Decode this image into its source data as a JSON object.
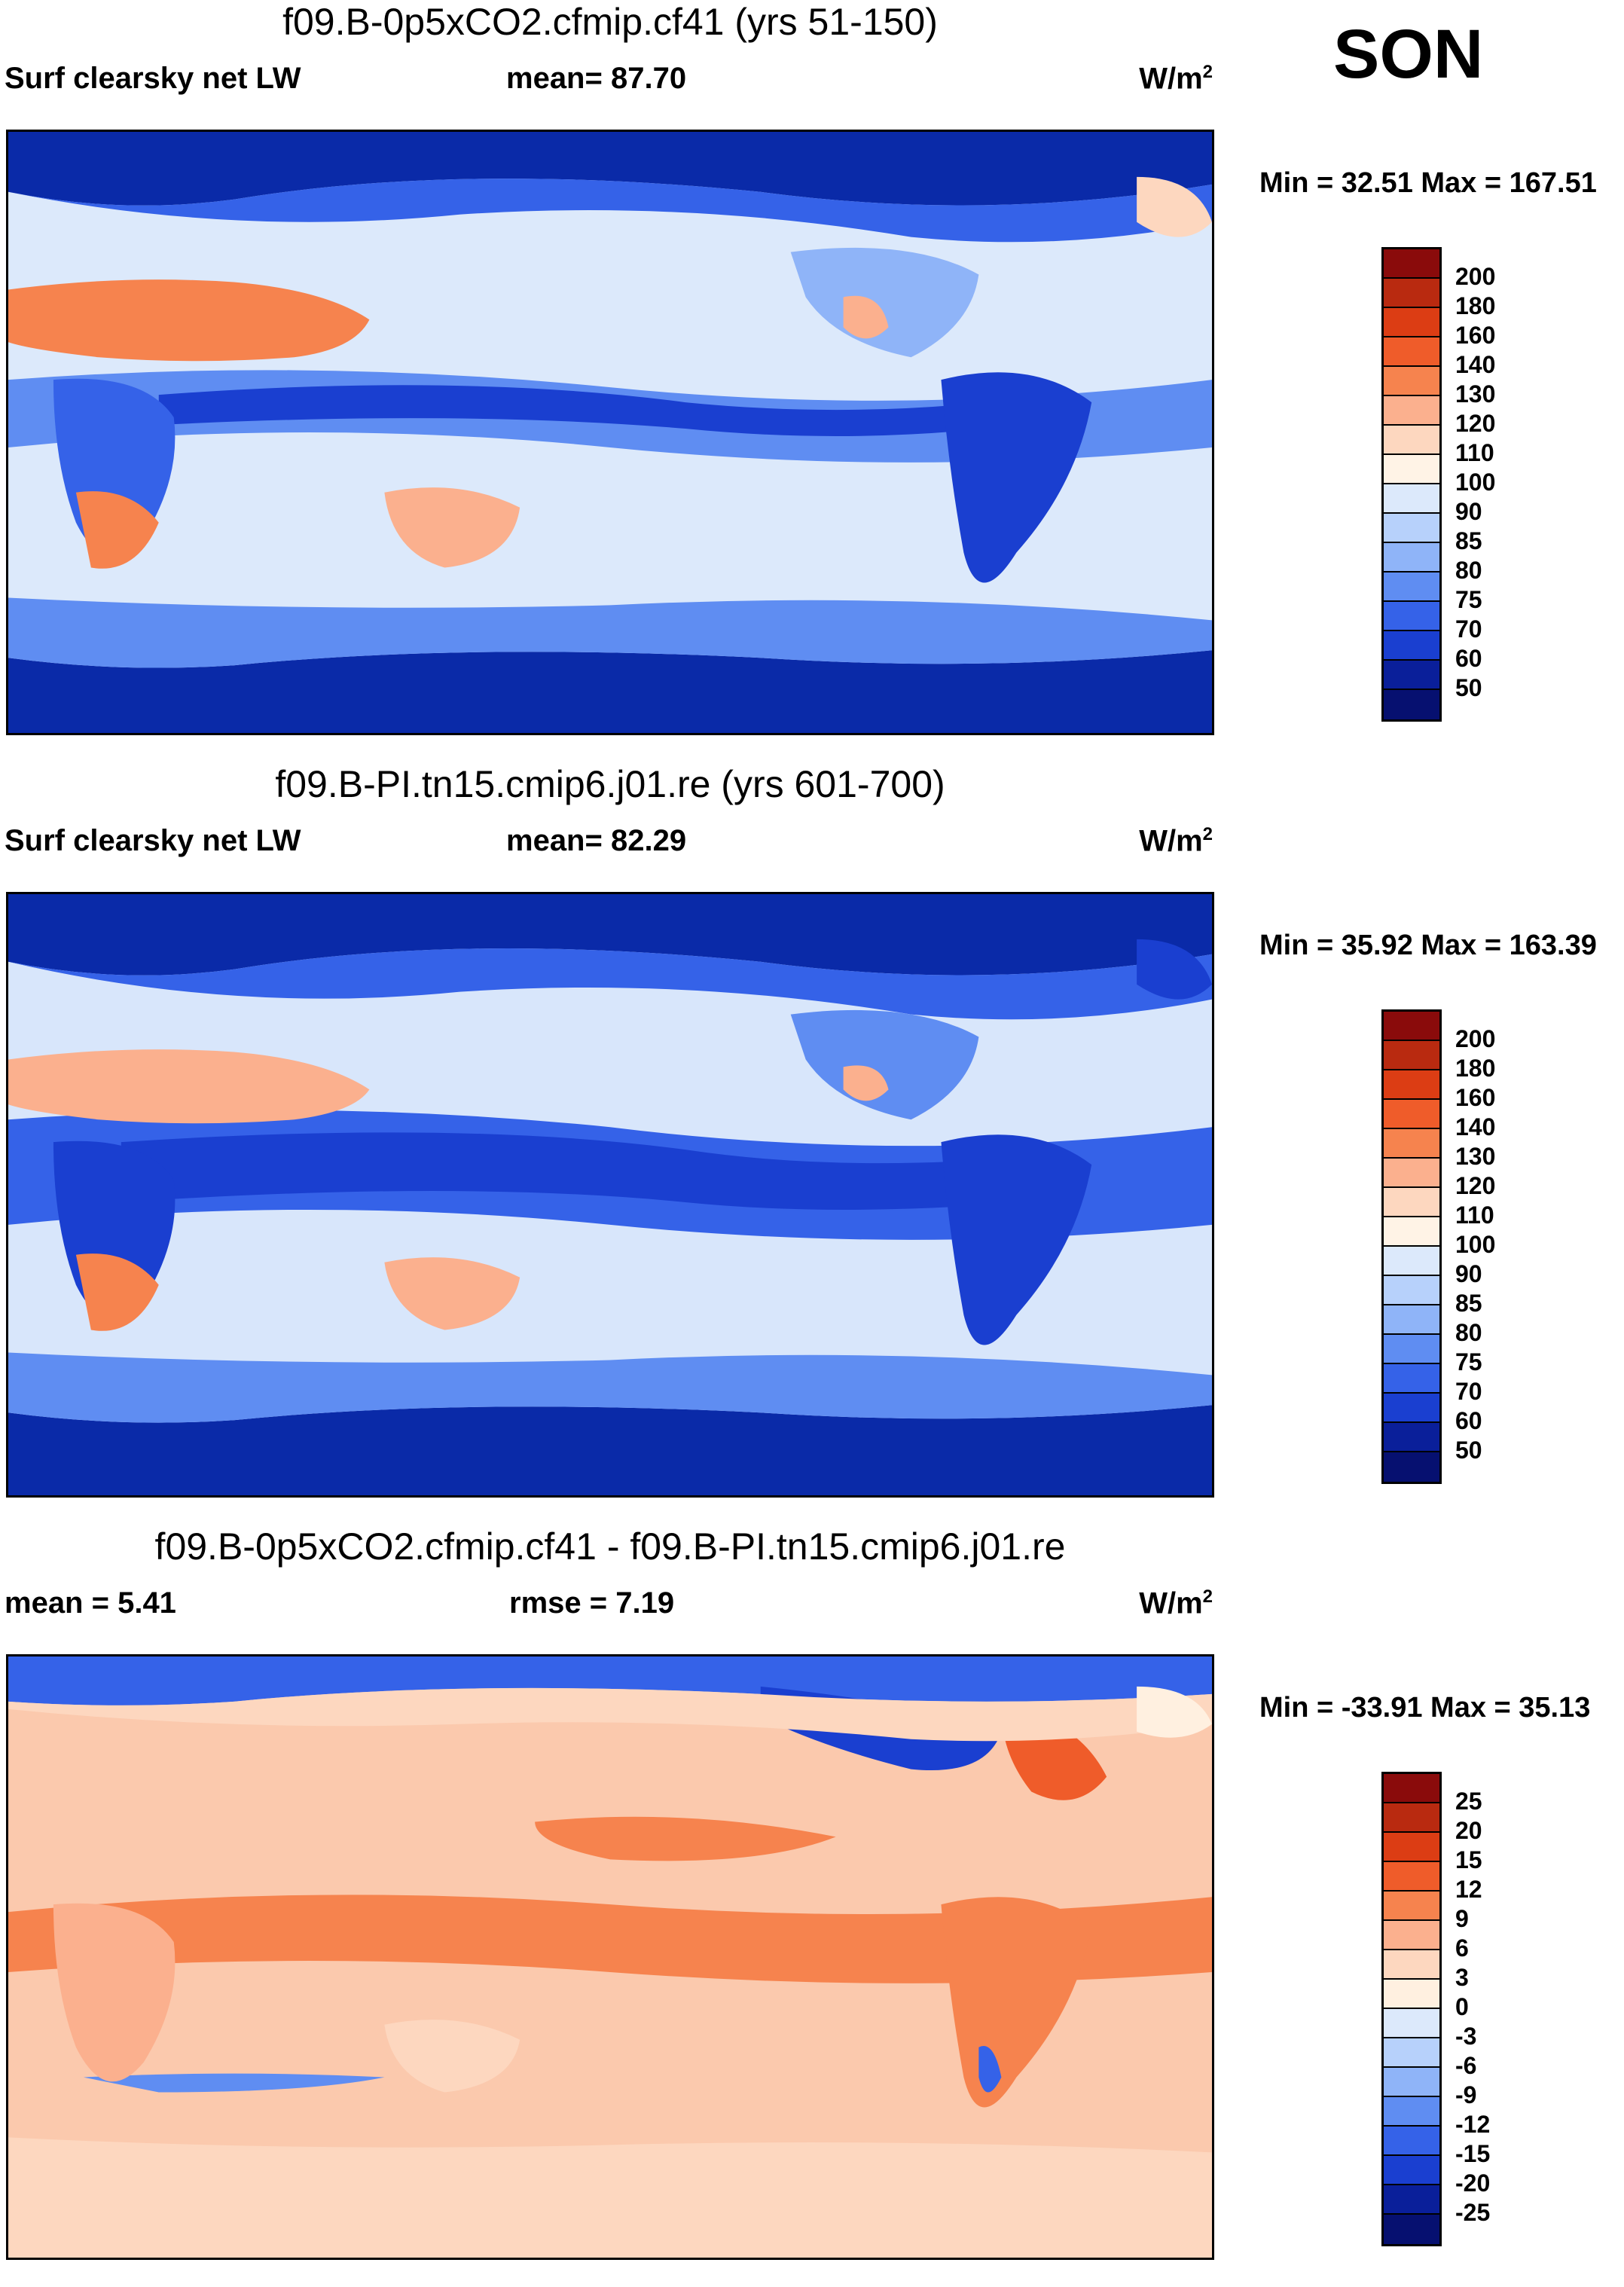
{
  "season": "SON",
  "panels": [
    {
      "title": "f09.B-0p5xCO2.cfmip.cf41 (yrs 51-150)",
      "left": "Surf clearsky net LW",
      "mid": "mean=  87.70",
      "units": "W/m",
      "units_sup": "2",
      "minmax": "Min =  32.51 Max = 167.51",
      "legend_labels": [
        "200",
        "180",
        "160",
        "140",
        "130",
        "120",
        "110",
        "100",
        "90",
        "85",
        "80",
        "75",
        "70",
        "60",
        "50"
      ],
      "legend_colors": [
        "#8a0b0b",
        "#b92a10",
        "#dc3d14",
        "#ef5c2a",
        "#f6834e",
        "#fbb08e",
        "#fdd7bf",
        "#fff3e6",
        "#dce9fb",
        "#b7d1fb",
        "#8fb4f8",
        "#5f8df2",
        "#3562e8",
        "#1a3fd0",
        "#0a1f9a",
        "#061070"
      ],
      "colorbar_levels": 16,
      "map": {
        "ocean": "#dce9fb",
        "polar": "#0a2aa8"
      }
    },
    {
      "title": "f09.B-PI.tn15.cmip6.j01.re (yrs 601-700)",
      "left": "Surf clearsky net LW",
      "mid": "mean=  82.29",
      "units": "W/m",
      "units_sup": "2",
      "minmax": "Min =  35.92 Max = 163.39",
      "legend_labels": [
        "200",
        "180",
        "160",
        "140",
        "130",
        "120",
        "110",
        "100",
        "90",
        "85",
        "80",
        "75",
        "70",
        "60",
        "50"
      ],
      "legend_colors": [
        "#8a0b0b",
        "#b92a10",
        "#dc3d14",
        "#ef5c2a",
        "#f6834e",
        "#fbb08e",
        "#fdd7bf",
        "#fff3e6",
        "#dce9fb",
        "#b7d1fb",
        "#8fb4f8",
        "#5f8df2",
        "#3562e8",
        "#1a3fd0",
        "#0a1f9a",
        "#061070"
      ],
      "colorbar_levels": 16,
      "map": {
        "ocean": "#d8e6fb",
        "polar": "#0a2aa8"
      }
    },
    {
      "title": "f09.B-0p5xCO2.cfmip.cf41 - f09.B-PI.tn15.cmip6.j01.re",
      "left": "mean =    5.41",
      "mid": "rmse =    7.19",
      "units": "W/m",
      "units_sup": "2",
      "minmax": "Min = -33.91 Max =  35.13",
      "legend_labels": [
        "25",
        "20",
        "15",
        "12",
        "9",
        "6",
        "3",
        "0",
        "-3",
        "-6",
        "-9",
        "-12",
        "-15",
        "-20",
        "-25"
      ],
      "legend_colors": [
        "#8a0b0b",
        "#b92a10",
        "#dc3d14",
        "#ef5c2a",
        "#f6834e",
        "#fbb08e",
        "#fdd7bf",
        "#fff0e0",
        "#dce9fb",
        "#b7d1fb",
        "#8fb4f8",
        "#5f8df2",
        "#3562e8",
        "#1a3fd0",
        "#0a1f9a",
        "#061070"
      ],
      "colorbar_levels": 16,
      "map": {
        "ocean": "#fbc9ad",
        "polar": "#f7a784"
      }
    }
  ]
}
